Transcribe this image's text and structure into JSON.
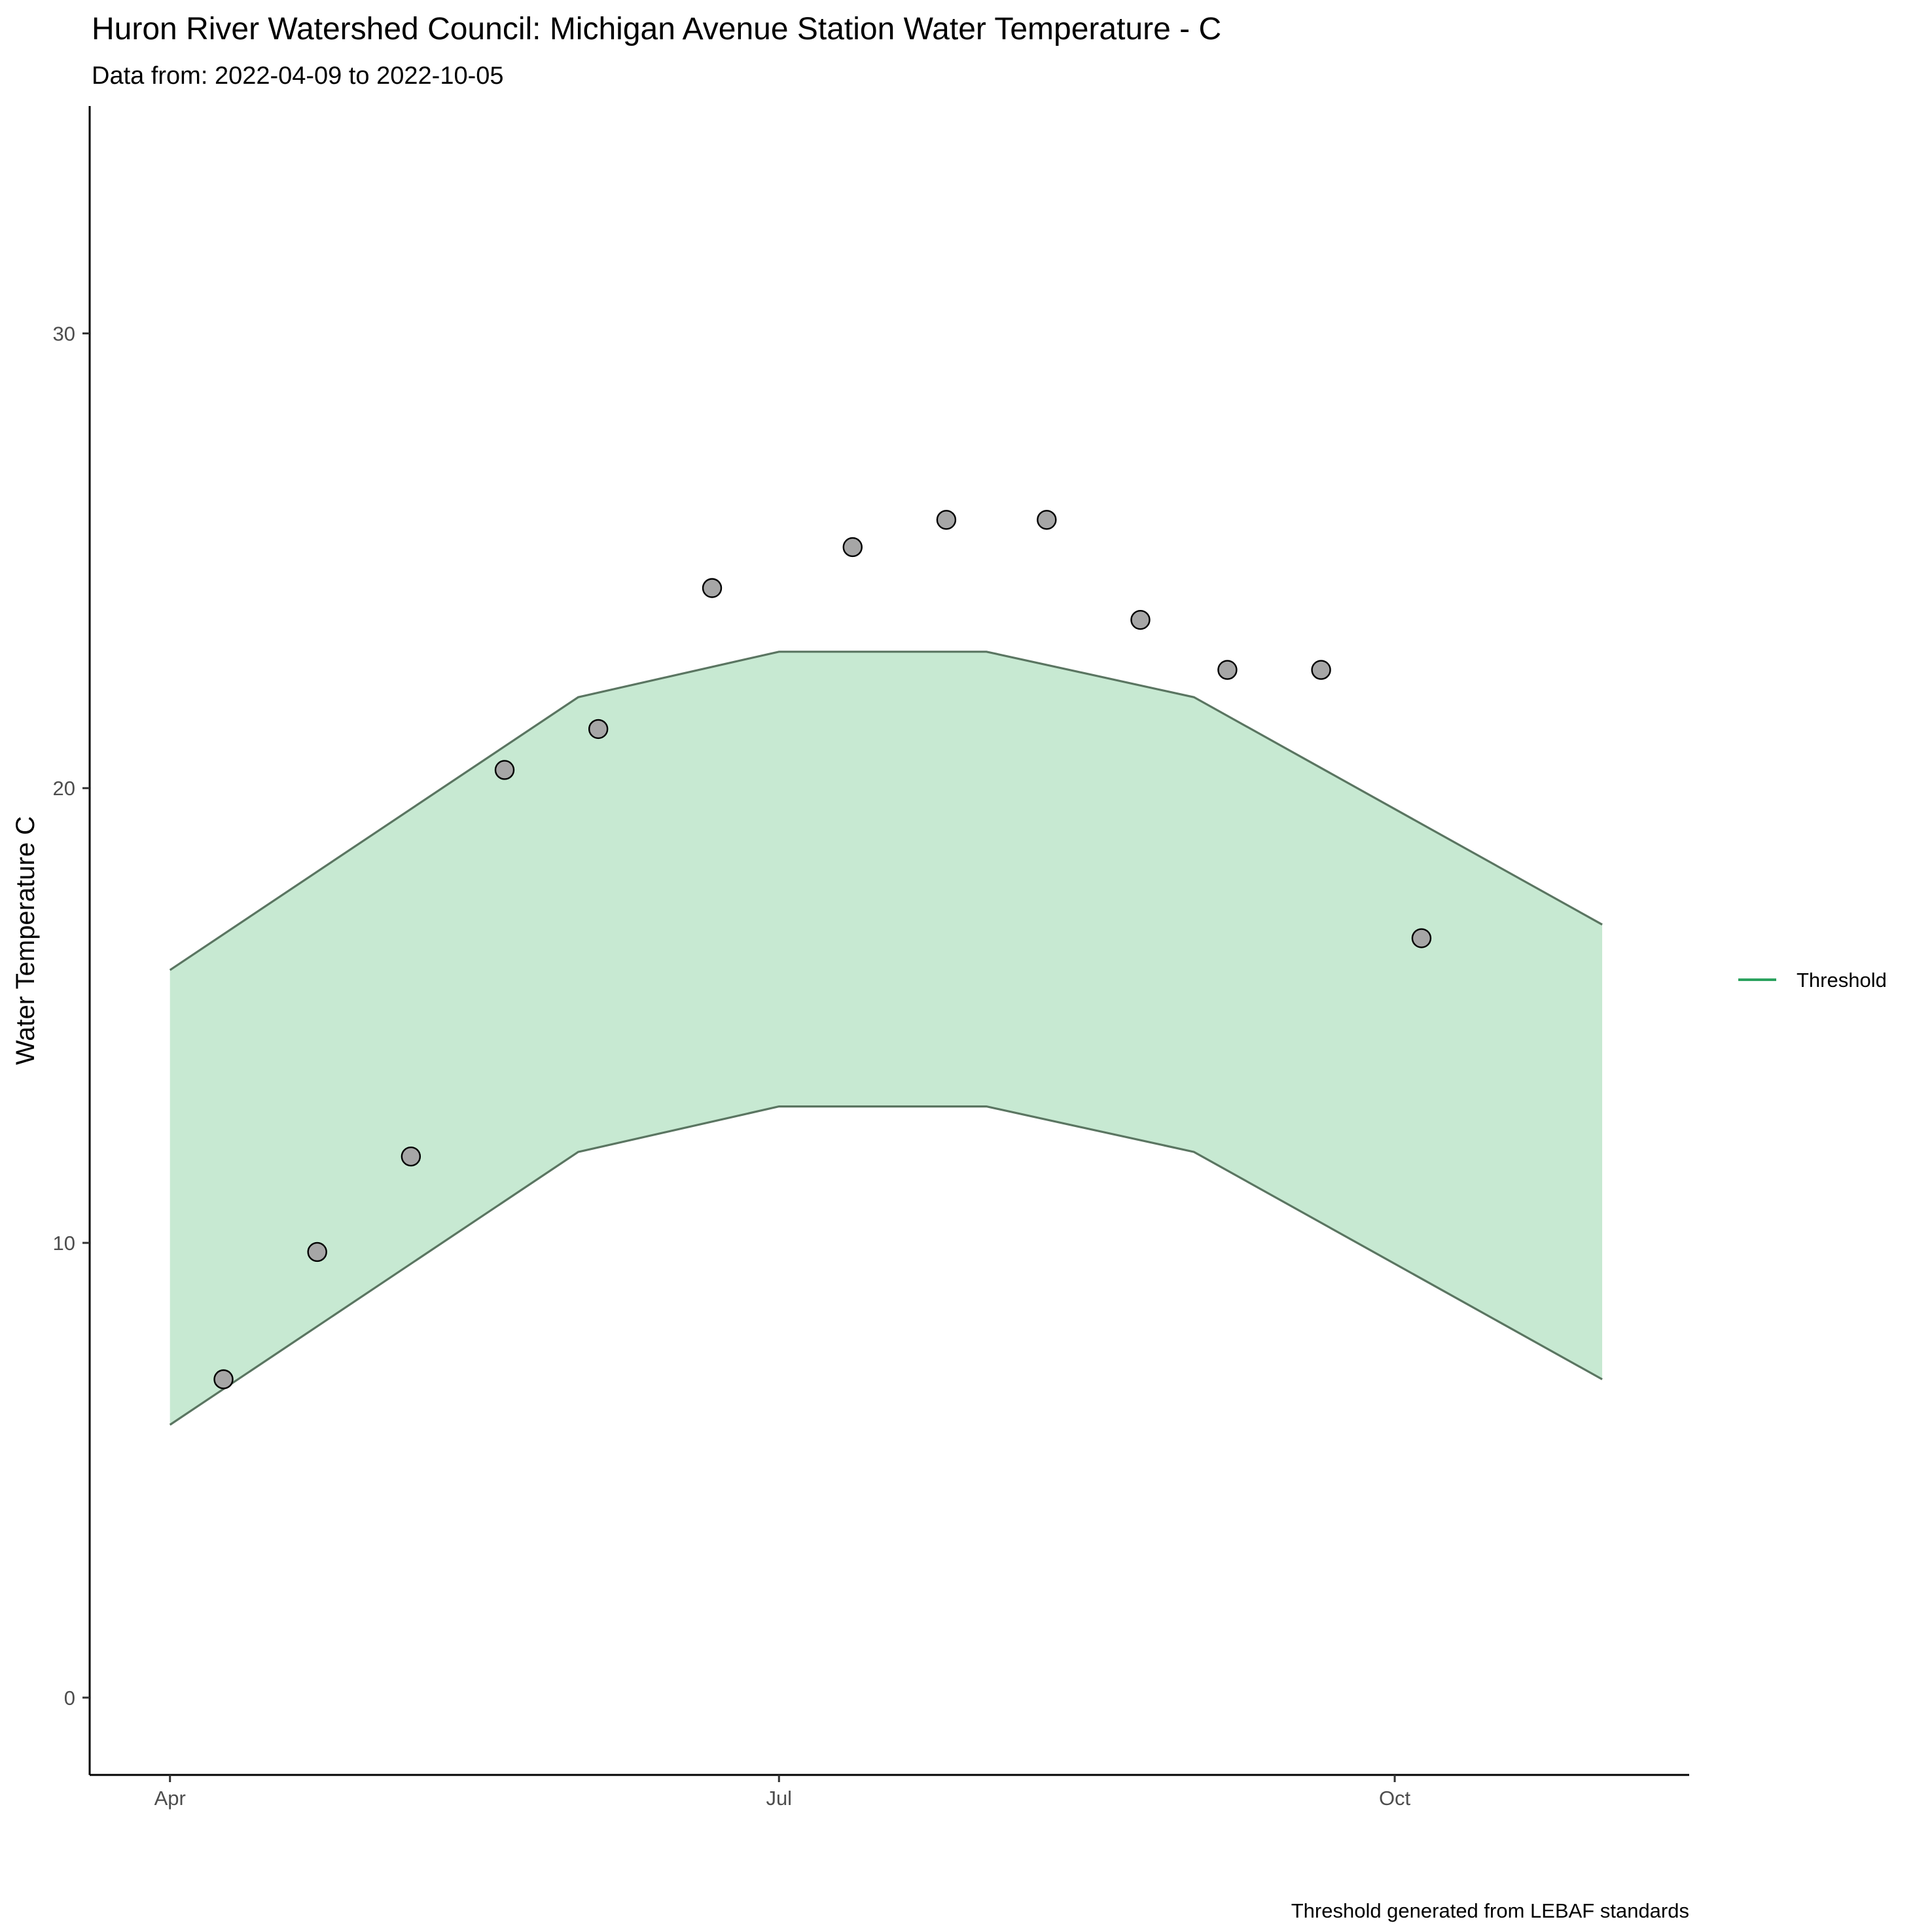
{
  "chart_data": {
    "type": "scatter",
    "title": "Huron River Watershed Council: Michigan Avenue Station Water Temperature - C",
    "subtitle": "Data from: 2022-04-09 to 2022-10-05",
    "xlabel": "",
    "ylabel": "Water Temperature C",
    "caption": "Threshold generated from LEBAF standards",
    "x_ticks": [
      {
        "label": "Apr",
        "date": "2022-04-01"
      },
      {
        "label": "Jul",
        "date": "2022-07-01"
      },
      {
        "label": "Oct",
        "date": "2022-10-01"
      }
    ],
    "y_ticks": [
      0,
      10,
      20,
      30
    ],
    "xlim": [
      "2022-03-20",
      "2022-11-14"
    ],
    "ylim": [
      -1.7,
      35
    ],
    "grid": false,
    "legend": {
      "position": "right",
      "entries": [
        {
          "label": "Threshold",
          "color": "#2ca25f"
        }
      ]
    },
    "threshold_band": {
      "name": "Threshold",
      "fill": "#c7e9d2",
      "line_color": "#5a7561",
      "points": [
        {
          "date": "2022-04-01",
          "lower": 6,
          "upper": 16
        },
        {
          "date": "2022-06-01",
          "lower": 12,
          "upper": 22
        },
        {
          "date": "2022-07-01",
          "lower": 13,
          "upper": 23
        },
        {
          "date": "2022-08-01",
          "lower": 13,
          "upper": 23
        },
        {
          "date": "2022-09-01",
          "lower": 12,
          "upper": 22
        },
        {
          "date": "2022-11-01",
          "lower": 7,
          "upper": 17
        }
      ]
    },
    "points_style": {
      "fill": "#a6a6a6",
      "stroke": "#000000"
    },
    "points": [
      {
        "date": "2022-04-09",
        "value": 7.0
      },
      {
        "date": "2022-04-23",
        "value": 9.8
      },
      {
        "date": "2022-05-07",
        "value": 11.9
      },
      {
        "date": "2022-05-21",
        "value": 20.4
      },
      {
        "date": "2022-06-04",
        "value": 21.3
      },
      {
        "date": "2022-06-21",
        "value": 24.4
      },
      {
        "date": "2022-07-12",
        "value": 25.3
      },
      {
        "date": "2022-07-26",
        "value": 25.9
      },
      {
        "date": "2022-08-10",
        "value": 25.9
      },
      {
        "date": "2022-08-24",
        "value": 23.7
      },
      {
        "date": "2022-09-06",
        "value": 22.6
      },
      {
        "date": "2022-09-20",
        "value": 22.6
      },
      {
        "date": "2022-10-05",
        "value": 16.7
      }
    ]
  }
}
